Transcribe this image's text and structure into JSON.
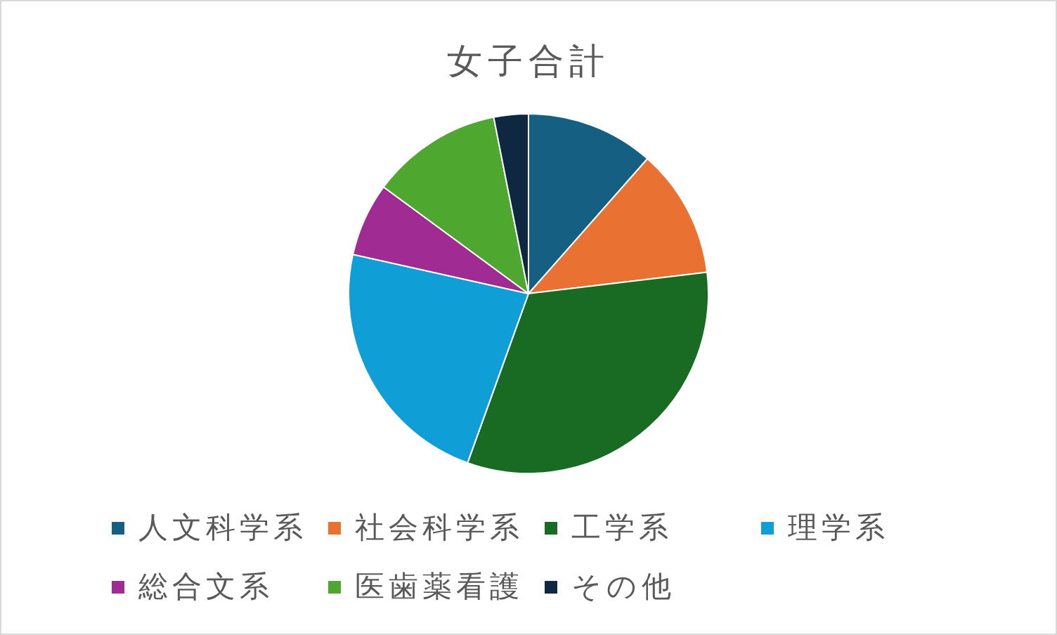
{
  "chart_data": {
    "type": "pie",
    "title": "女子合計",
    "categories": [
      "人文科学系",
      "社会科学系",
      "工学系",
      "理学系",
      "総合文系",
      "医歯薬看護",
      "その他"
    ],
    "values": [
      11.5,
      11.6,
      32.4,
      23.0,
      6.6,
      11.8,
      3.1
    ],
    "colors": [
      "#156082",
      "#e97132",
      "#196b24",
      "#0f9ed5",
      "#a02b93",
      "#4ea72e",
      "#0e2841"
    ],
    "legend": "bottom"
  }
}
